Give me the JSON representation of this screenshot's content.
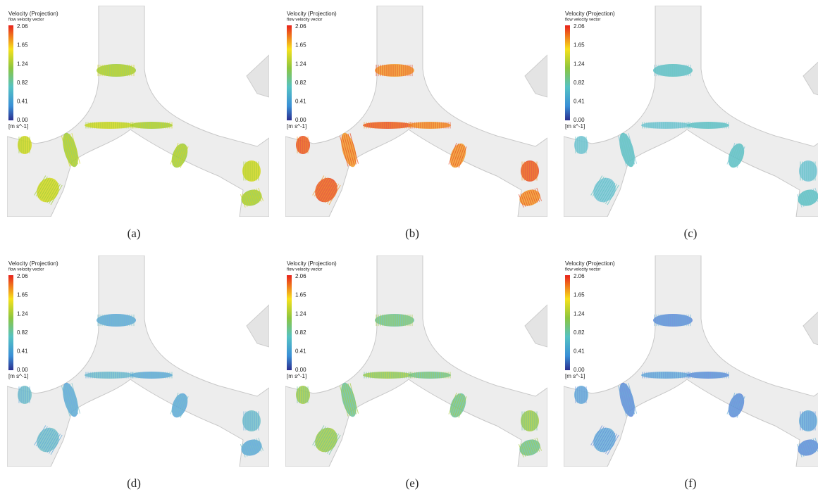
{
  "panels": [
    {
      "caption": "(a)",
      "legend": {
        "title": "Velocity (Projection)",
        "subtitle": "flow velocity vector",
        "ticks": [
          "2.06",
          "1.65",
          "1.24",
          "0.82",
          "0.41",
          "0.00"
        ],
        "unit": "[m s^-1]"
      }
    },
    {
      "caption": "(b)",
      "legend": {
        "title": "Velocity (Projection)",
        "subtitle": "flow velocity vector",
        "ticks": [
          "2.06",
          "1.65",
          "1.24",
          "0.82",
          "0.41",
          "0.00"
        ],
        "unit": "[m s^-1]"
      }
    },
    {
      "caption": "(c)",
      "legend": {
        "title": "Velocity (Projection)",
        "subtitle": "flow velocity vector",
        "ticks": [
          "2.06",
          "1.65",
          "1.24",
          "0.82",
          "0.41",
          "0.00"
        ],
        "unit": "[m s^-1]"
      }
    },
    {
      "caption": "(d)",
      "legend": {
        "title": "Velocity (Projection)",
        "subtitle": "flow velocity vector",
        "ticks": [
          "2.06",
          "1.65",
          "1.24",
          "0.82",
          "0.41",
          "0.00"
        ],
        "unit": "[m s^-1]"
      }
    },
    {
      "caption": "(e)",
      "legend": {
        "title": "Velocity (Projection)",
        "subtitle": "flow velocity vector",
        "ticks": [
          "2.06",
          "1.65",
          "1.24",
          "0.82",
          "0.41",
          "0.00"
        ],
        "unit": "[m s^-1]"
      }
    },
    {
      "caption": "(f)",
      "legend": {
        "title": "Velocity (Projection)",
        "subtitle": "flow velocity vector",
        "ticks": [
          "2.06",
          "1.65",
          "1.24",
          "0.82",
          "0.41",
          "0.00"
        ],
        "unit": "[m s^-1]"
      }
    }
  ]
}
